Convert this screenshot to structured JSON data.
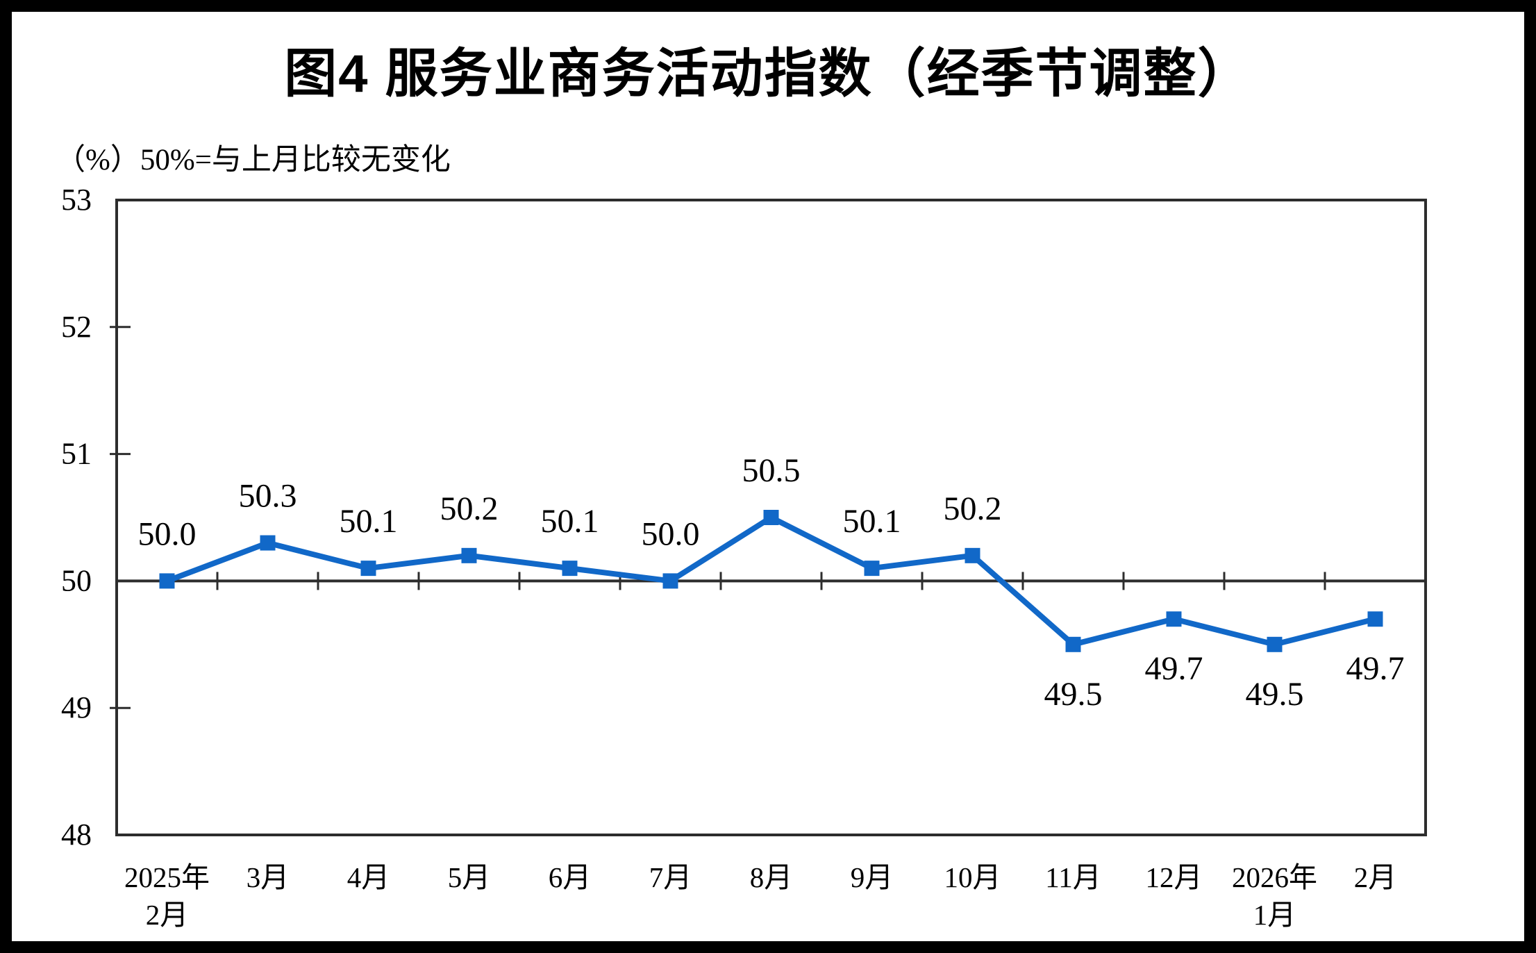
{
  "figure": {
    "title": "图4  服务业商务活动指数（经季节调整）",
    "subtitle": "（%）50%=与上月比较无变化"
  },
  "chart_data": {
    "type": "line",
    "title": "图4  服务业商务活动指数（经季节调整）",
    "unit_note": "（%）50%=与上月比较无变化",
    "xlabel": "",
    "ylabel": "%",
    "categories": [
      "2025年2月",
      "3月",
      "4月",
      "5月",
      "6月",
      "7月",
      "8月",
      "9月",
      "10月",
      "11月",
      "12月",
      "2026年1月",
      "2月"
    ],
    "category_label_lines": [
      [
        "2025年",
        "2月"
      ],
      [
        "3月"
      ],
      [
        "4月"
      ],
      [
        "5月"
      ],
      [
        "6月"
      ],
      [
        "7月"
      ],
      [
        "8月"
      ],
      [
        "9月"
      ],
      [
        "10月"
      ],
      [
        "11月"
      ],
      [
        "12月"
      ],
      [
        "2026年",
        "1月"
      ],
      [
        "2月"
      ]
    ],
    "series": [
      {
        "name": "服务业商务活动指数",
        "values": [
          50.0,
          50.3,
          50.1,
          50.2,
          50.1,
          50.0,
          50.5,
          50.1,
          50.2,
          49.5,
          49.7,
          49.5,
          49.7
        ],
        "point_labels": [
          "50.0",
          "50.3",
          "50.1",
          "50.2",
          "50.1",
          "50.0",
          "50.5",
          "50.1",
          "50.2",
          "49.5",
          "49.7",
          "49.5",
          "49.7"
        ]
      }
    ],
    "ylim": [
      48,
      53
    ],
    "yticks": [
      48,
      49,
      50,
      51,
      52,
      53
    ],
    "reference_line": 50,
    "legend_position": "none",
    "grid": "off",
    "marker": "square",
    "line_color": "#1168C8",
    "axis_color": "#2D2D2D",
    "text_color": "#000000"
  }
}
